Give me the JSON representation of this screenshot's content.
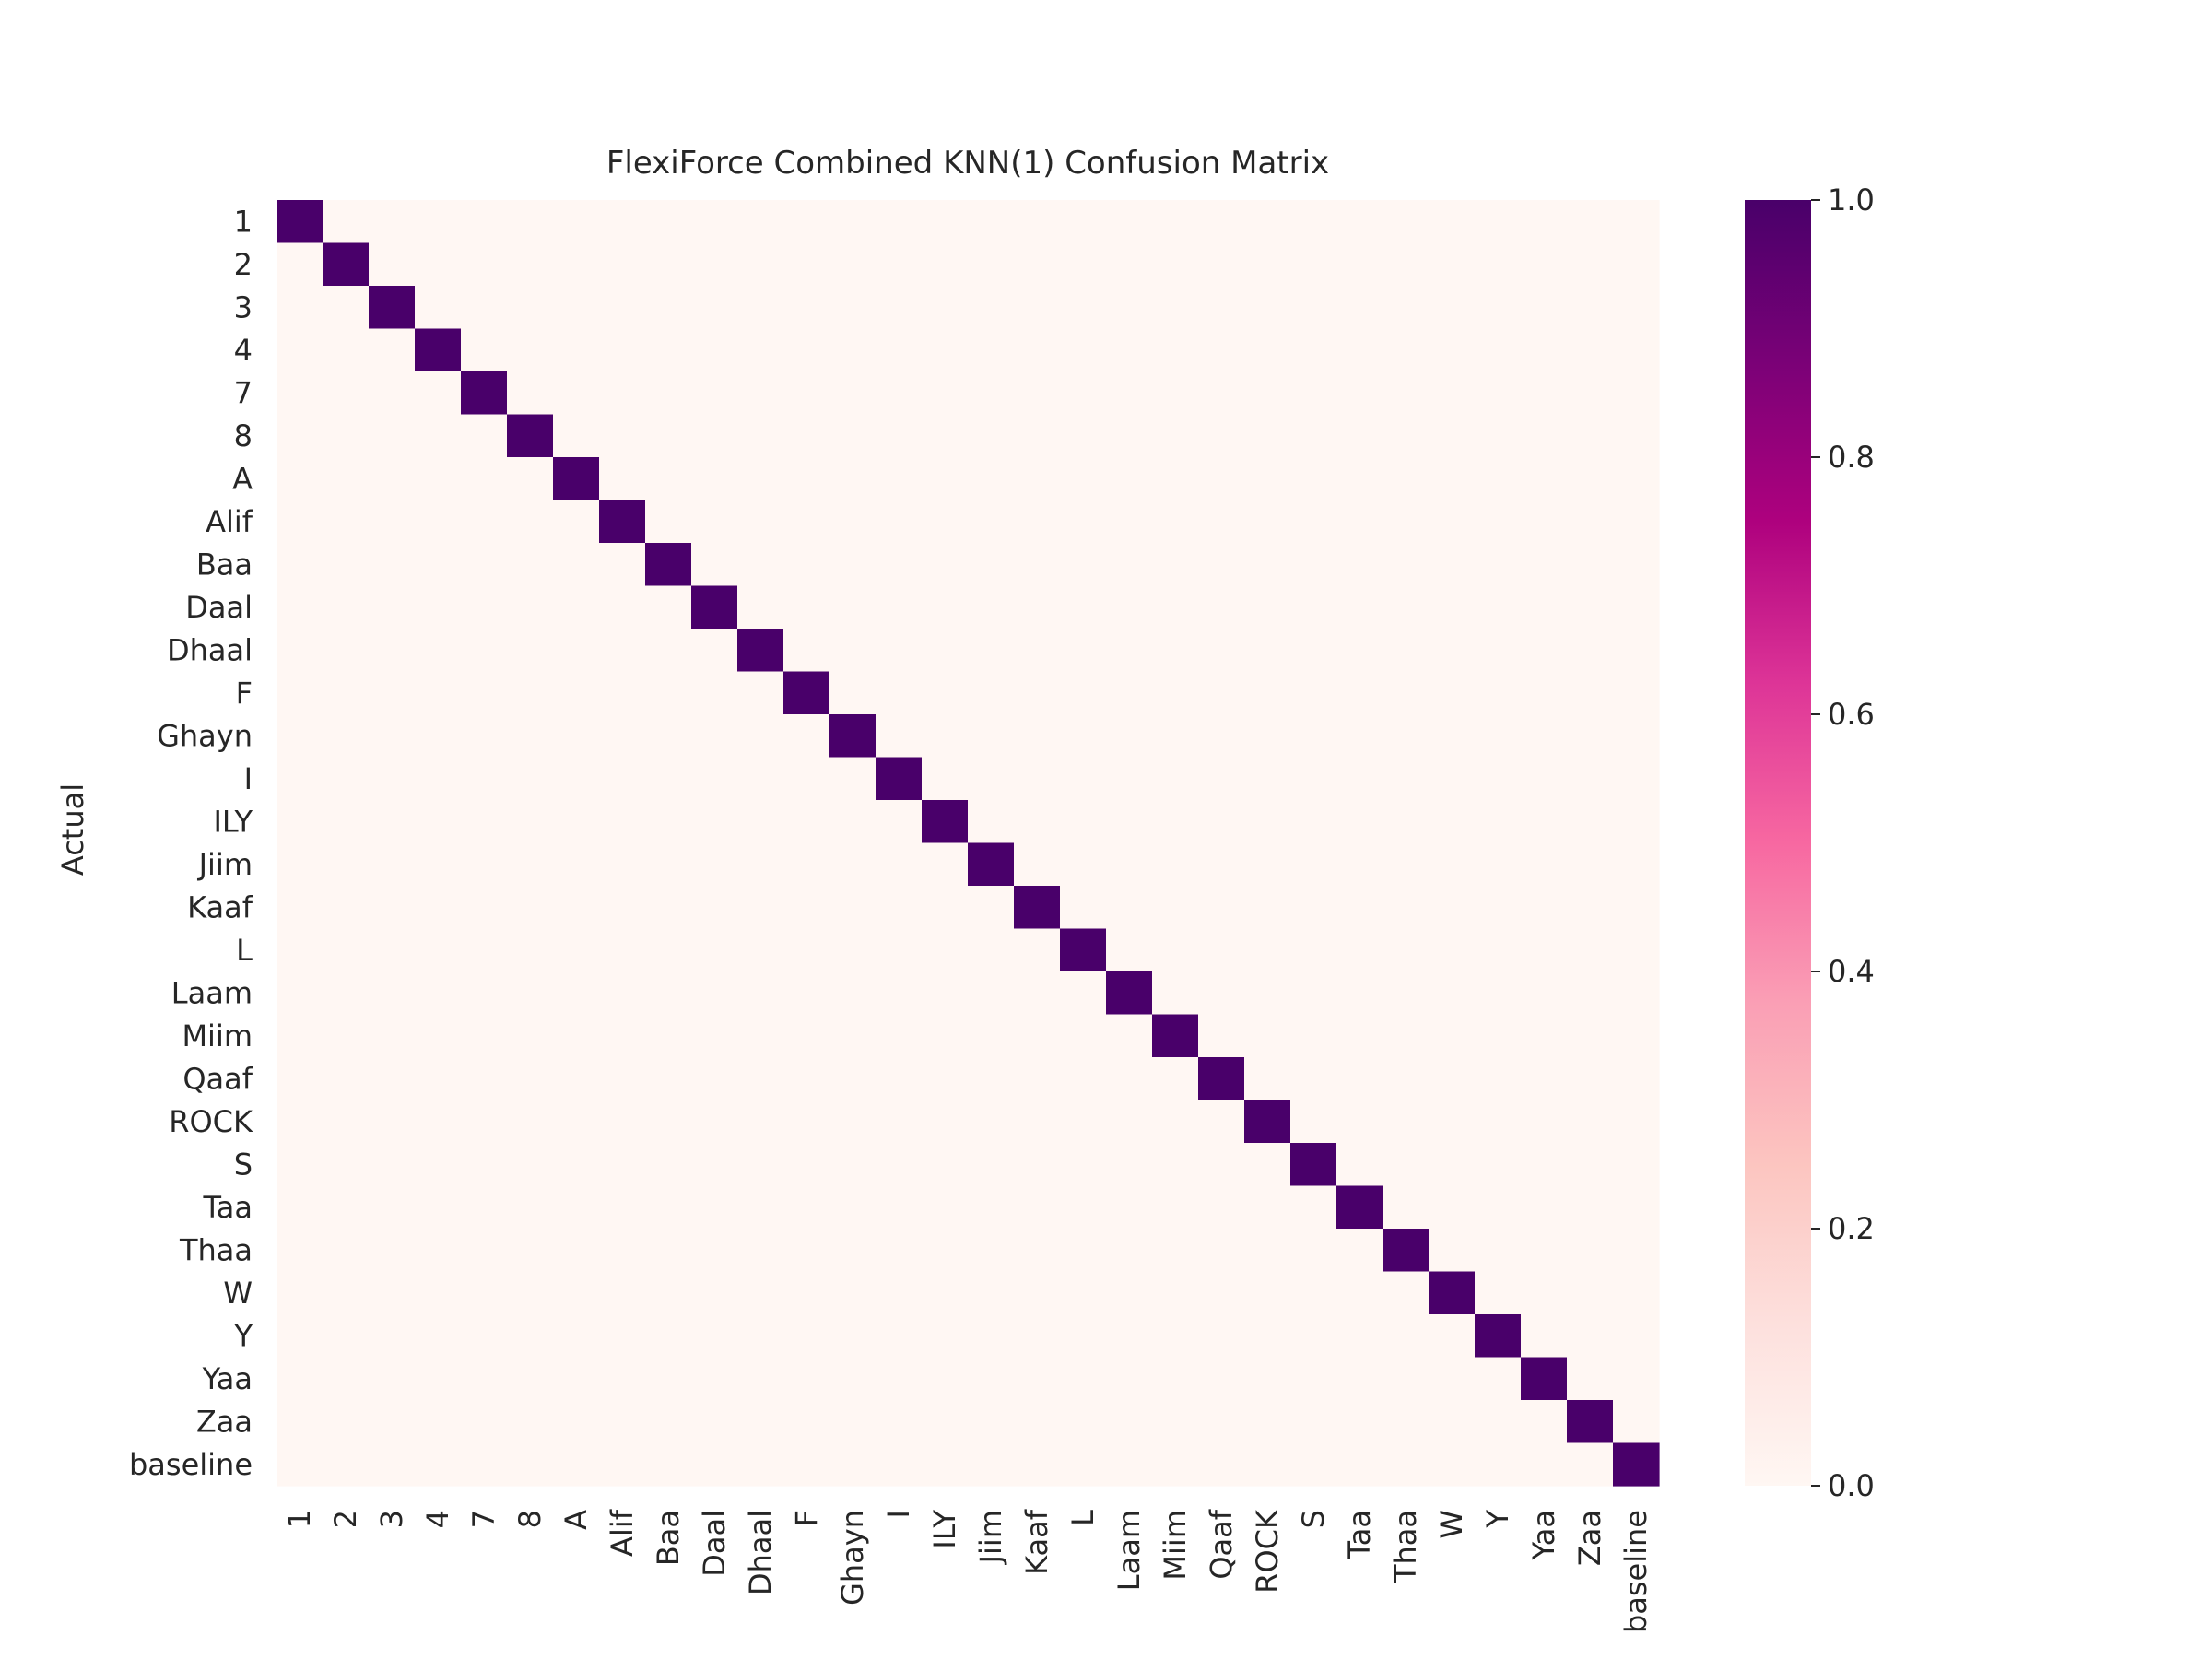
{
  "chart_data": {
    "type": "heatmap",
    "title": "FlexiForce Combined KNN(1) Confusion Matrix",
    "ylabel": "Actual",
    "xlabel": "",
    "labels": [
      "1",
      "2",
      "3",
      "4",
      "7",
      "8",
      "A",
      "Alif",
      "Baa",
      "Daal",
      "Dhaal",
      "F",
      "Ghayn",
      "I",
      "ILY",
      "Jiim",
      "Kaaf",
      "L",
      "Laam",
      "Miim",
      "Qaaf",
      "ROCK",
      "S",
      "Taa",
      "Thaa",
      "W",
      "Y",
      "Yaa",
      "Zaa",
      "baseline"
    ],
    "values": "identity",
    "vlim": [
      0,
      1
    ],
    "colorbar": {
      "ticks": [
        0.0,
        0.2,
        0.4,
        0.6,
        0.8,
        1.0
      ],
      "tick_labels": [
        "0.0",
        "0.2",
        "0.4",
        "0.6",
        "0.8",
        "1.0"
      ]
    },
    "colormap": [
      "#fff7f3",
      "#fde0dd",
      "#fcc5c0",
      "#fa9fb5",
      "#f768a1",
      "#dd3497",
      "#ae017e",
      "#7a0177",
      "#49006a"
    ],
    "grid": false
  }
}
